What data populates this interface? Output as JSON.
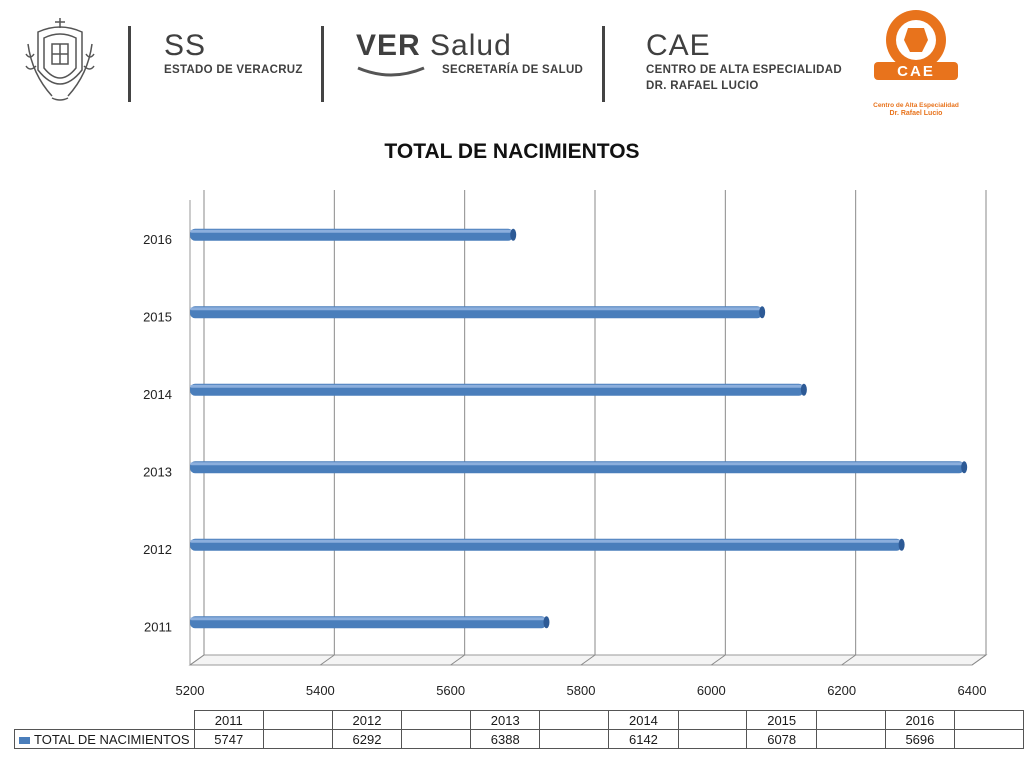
{
  "header": {
    "org1": {
      "big": "SS",
      "small": "ESTADO DE VERACRUZ"
    },
    "org2": {
      "big_bold": "VER",
      "big_light": "Salud",
      "small": "SECRETARÍA DE SALUD"
    },
    "org3": {
      "big": "CAE",
      "small_line1": "CENTRO DE ALTA ESPECIALIDAD",
      "small_line2": "DR. RAFAEL LUCIO"
    },
    "cae_logo": {
      "badge": "CAE",
      "line1": "Centro de Alta Especialidad",
      "line2": "Dr. Rafael Lucio",
      "color": "#e8731c"
    },
    "crest_icon": "veracruz-coat-of-arms-icon"
  },
  "chart_data": {
    "type": "bar",
    "orientation": "horizontal",
    "title": "TOTAL DE NACIMIENTOS",
    "categories": [
      "2011",
      "2012",
      "2013",
      "2014",
      "2015",
      "2016"
    ],
    "series": [
      {
        "name": "TOTAL DE NACIMIENTOS",
        "values": [
          5747,
          6292,
          6388,
          6142,
          6078,
          5696
        ],
        "color": "#4a7ebb"
      }
    ],
    "xlim": [
      5200,
      6400
    ],
    "xticks": [
      "5200",
      "5400",
      "5600",
      "5800",
      "6000",
      "6200",
      "6400"
    ],
    "grid": true,
    "legend": "data-table-bottom"
  },
  "table": {
    "years": [
      "2011",
      "2012",
      "2013",
      "2014",
      "2015",
      "2016"
    ],
    "values": [
      "5747",
      "6292",
      "6388",
      "6142",
      "6078",
      "5696"
    ],
    "series_label": "TOTAL DE NACIMIENTOS"
  }
}
